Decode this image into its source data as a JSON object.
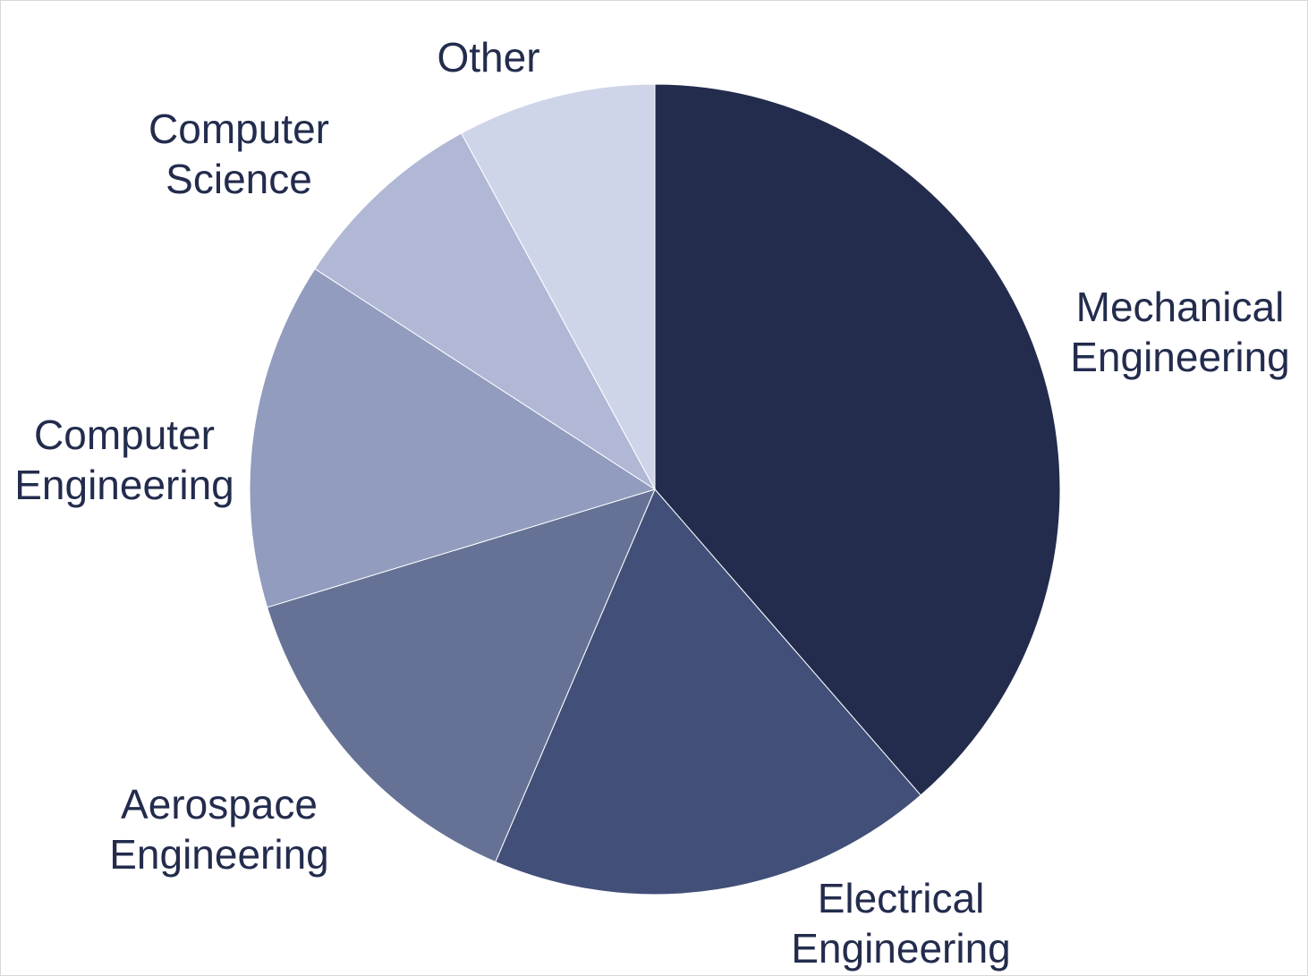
{
  "chart_data": {
    "type": "pie",
    "title": "",
    "start_angle_deg": 0,
    "direction": "clockwise",
    "slices": [
      {
        "label": [
          "Mechanical",
          "Engineering"
        ],
        "value": 39,
        "color": "#232c4d"
      },
      {
        "label": [
          "Electrical",
          "Engineering"
        ],
        "value": 18,
        "color": "#424f78"
      },
      {
        "label": [
          "Aerospace",
          "Engineering"
        ],
        "value": 14,
        "color": "#667295"
      },
      {
        "label": [
          "Computer",
          "Engineering"
        ],
        "value": 14,
        "color": "#919cbe"
      },
      {
        "label": [
          "Computer",
          "Science"
        ],
        "value": 8,
        "color": "#b1b8d6"
      },
      {
        "label": [
          "Other"
        ],
        "value": 8,
        "color": "#cfd5e9"
      }
    ],
    "legend": "none",
    "label_position": "outside"
  }
}
